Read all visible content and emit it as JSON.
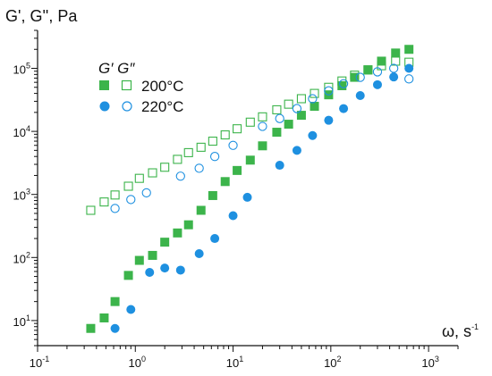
{
  "chart_data": {
    "type": "scatter",
    "title": "",
    "ylabel": "G', G'', Pa",
    "xlabel": "ω, s",
    "xlabel_exp": "-1",
    "xscale": "log",
    "yscale": "log",
    "xlim": [
      0.1,
      2000
    ],
    "ylim": [
      4,
      400000
    ],
    "x_ticks": [
      {
        "value": 0.1,
        "base": "10",
        "exp": "-1"
      },
      {
        "value": 1,
        "base": "10",
        "exp": "0"
      },
      {
        "value": 10,
        "base": "10",
        "exp": "1"
      },
      {
        "value": 100,
        "base": "10",
        "exp": "2"
      },
      {
        "value": 1000,
        "base": "10",
        "exp": "3"
      }
    ],
    "y_ticks": [
      {
        "value": 10,
        "base": "10",
        "exp": "1"
      },
      {
        "value": 100,
        "base": "10",
        "exp": "2"
      },
      {
        "value": 1000,
        "base": "10",
        "exp": "3"
      },
      {
        "value": 10000,
        "base": "10",
        "exp": "4"
      },
      {
        "value": 100000,
        "base": "10",
        "exp": "5"
      }
    ],
    "grid": false,
    "legend": {
      "header": "G′ G″",
      "placement": "top-left",
      "entries": [
        "200°C",
        "220°C"
      ]
    },
    "colors": {
      "200C": "#3cb44b",
      "220C": "#1e90e0"
    },
    "series": [
      {
        "group": "200°C",
        "modulus": "G'",
        "marker": "filled-square",
        "color": "#3cb44b",
        "points": [
          [
            0.35,
            7.5
          ],
          [
            0.48,
            11
          ],
          [
            0.62,
            20
          ],
          [
            0.85,
            52
          ],
          [
            1.1,
            90
          ],
          [
            1.5,
            108
          ],
          [
            2.0,
            175
          ],
          [
            2.7,
            245
          ],
          [
            3.5,
            330
          ],
          [
            4.7,
            560
          ],
          [
            6.2,
            960
          ],
          [
            8.3,
            1600
          ],
          [
            11,
            2400
          ],
          [
            15,
            3500
          ],
          [
            20,
            5900
          ],
          [
            28,
            9700
          ],
          [
            37,
            13000
          ],
          [
            50,
            18000
          ],
          [
            68,
            25000
          ],
          [
            95,
            38000
          ],
          [
            130,
            53000
          ],
          [
            175,
            72000
          ],
          [
            240,
            95000
          ],
          [
            330,
            130000
          ],
          [
            460,
            175000
          ],
          [
            630,
            200000
          ]
        ]
      },
      {
        "group": "200°C",
        "modulus": "G''",
        "marker": "open-square",
        "color": "#3cb44b",
        "points": [
          [
            0.35,
            560
          ],
          [
            0.48,
            760
          ],
          [
            0.62,
            980
          ],
          [
            0.85,
            1350
          ],
          [
            1.1,
            1800
          ],
          [
            1.5,
            2200
          ],
          [
            2.0,
            2700
          ],
          [
            2.7,
            3600
          ],
          [
            3.5,
            4600
          ],
          [
            4.7,
            5600
          ],
          [
            6.2,
            7000
          ],
          [
            8.3,
            8800
          ],
          [
            11,
            11000
          ],
          [
            15,
            14000
          ],
          [
            20,
            17000
          ],
          [
            28,
            22000
          ],
          [
            37,
            27000
          ],
          [
            50,
            33000
          ],
          [
            68,
            40000
          ],
          [
            95,
            50000
          ],
          [
            130,
            63000
          ],
          [
            175,
            78000
          ],
          [
            240,
            94000
          ],
          [
            330,
            110000
          ],
          [
            460,
            130000
          ],
          [
            630,
            125000
          ]
        ]
      },
      {
        "group": "220°C",
        "modulus": "G'",
        "marker": "filled-circle",
        "color": "#1e90e0",
        "points": [
          [
            0.62,
            7.5
          ],
          [
            0.9,
            15
          ],
          [
            1.4,
            58
          ],
          [
            2.0,
            68
          ],
          [
            2.9,
            63
          ],
          [
            4.5,
            115
          ],
          [
            6.5,
            200
          ],
          [
            10,
            460
          ],
          [
            14,
            900
          ],
          [
            30,
            2900
          ],
          [
            45,
            5000
          ],
          [
            65,
            8600
          ],
          [
            95,
            15000
          ],
          [
            135,
            23000
          ],
          [
            200,
            37000
          ],
          [
            300,
            55000
          ],
          [
            440,
            73000
          ],
          [
            630,
            100000
          ]
        ]
      },
      {
        "group": "220°C",
        "modulus": "G''",
        "marker": "open-circle",
        "color": "#1e90e0",
        "points": [
          [
            0.62,
            600
          ],
          [
            0.9,
            830
          ],
          [
            1.3,
            1060
          ],
          [
            2.9,
            1950
          ],
          [
            4.5,
            2600
          ],
          [
            6.5,
            4000
          ],
          [
            10,
            6000
          ],
          [
            20,
            12000
          ],
          [
            30,
            16000
          ],
          [
            45,
            23000
          ],
          [
            65,
            33000
          ],
          [
            95,
            44000
          ],
          [
            135,
            57000
          ],
          [
            200,
            72000
          ],
          [
            300,
            88000
          ],
          [
            440,
            100000
          ],
          [
            630,
            68000
          ]
        ]
      }
    ]
  }
}
